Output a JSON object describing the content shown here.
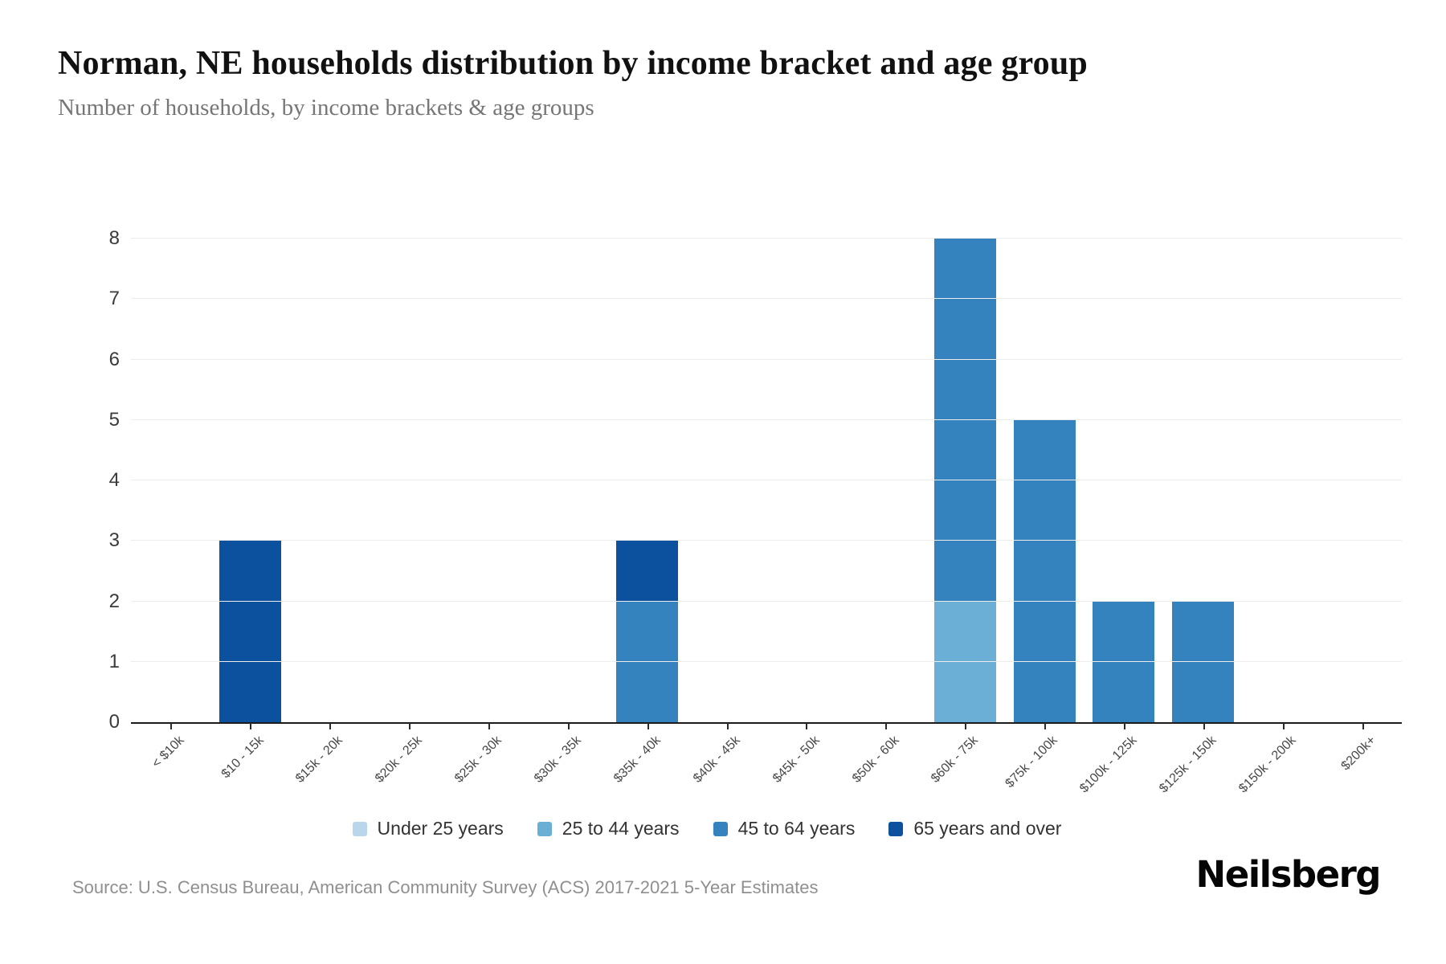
{
  "header": {
    "title": "Norman, NE households distribution by income bracket and age group",
    "subtitle": "Number of households, by income brackets & age groups"
  },
  "chart_data": {
    "type": "bar",
    "stacked": true,
    "title": "Norman, NE households distribution by income bracket and age group",
    "subtitle": "Number of households, by income brackets & age groups",
    "xlabel": "",
    "ylabel": "",
    "ylim": [
      0,
      8
    ],
    "yticks": [
      0,
      1,
      2,
      3,
      4,
      5,
      6,
      7,
      8
    ],
    "grid": true,
    "legend_position": "bottom",
    "categories": [
      "< $10k",
      "$10 - 15k",
      "$15k - 20k",
      "$20k - 25k",
      "$25k - 30k",
      "$30k - 35k",
      "$35k - 40k",
      "$40k - 45k",
      "$45k - 50k",
      "$50k - 60k",
      "$60k - 75k",
      "$75k - 100k",
      "$100k - 125k",
      "$125k - 150k",
      "$150k - 200k",
      "$200k+"
    ],
    "series": [
      {
        "name": "Under 25 years",
        "color": "#bad6ea",
        "values": [
          0,
          0,
          0,
          0,
          0,
          0,
          0,
          0,
          0,
          0,
          0,
          0,
          0,
          0,
          0,
          0
        ]
      },
      {
        "name": "25 to 44 years",
        "color": "#6baed6",
        "values": [
          0,
          0,
          0,
          0,
          0,
          0,
          0,
          0,
          0,
          0,
          2,
          0,
          0,
          0,
          0,
          0
        ]
      },
      {
        "name": "45 to 64 years",
        "color": "#3583be",
        "values": [
          0,
          0,
          0,
          0,
          0,
          0,
          2,
          0,
          0,
          0,
          6,
          5,
          2,
          2,
          0,
          0
        ]
      },
      {
        "name": "65 years and over",
        "color": "#0b519e",
        "values": [
          0,
          3,
          0,
          0,
          0,
          0,
          1,
          0,
          0,
          0,
          0,
          0,
          0,
          0,
          0,
          0
        ]
      }
    ]
  },
  "footer": {
    "source": "Source: U.S. Census Bureau, American Community Survey (ACS) 2017-2021 5-Year Estimates",
    "brand": "Neilsberg"
  }
}
